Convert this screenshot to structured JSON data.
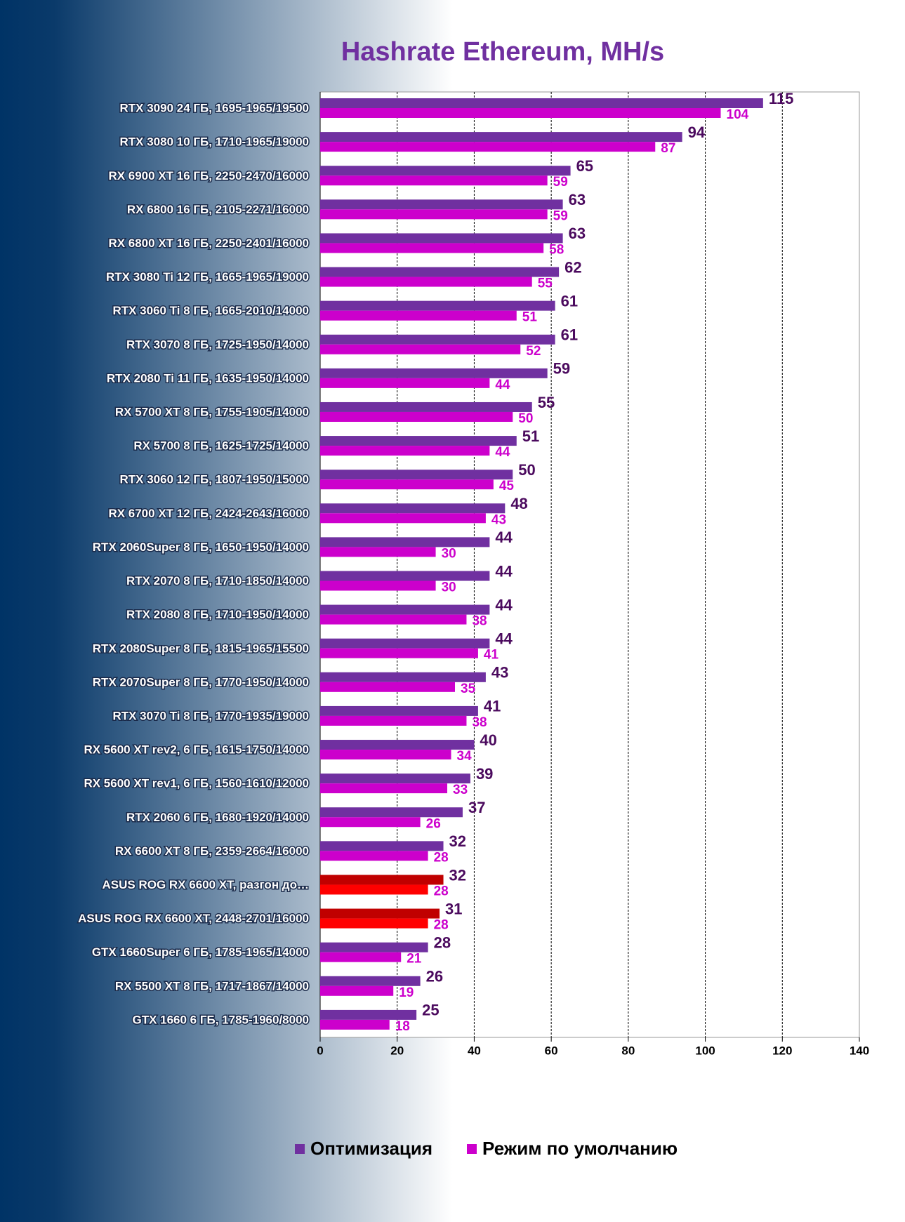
{
  "chart_data": {
    "type": "hbar",
    "title": "Hashrate Ethereum, MH/s",
    "categories": [
      "RTX 3090 24 ГБ, 1695-1965/19500",
      "RTX 3080 10 ГБ, 1710-1965/19000",
      "RX 6900 XT 16 ГБ, 2250-2470/16000",
      "RX 6800 16 ГБ, 2105-2271/16000",
      "RX 6800 XT 16 ГБ, 2250-2401/16000",
      "RTX 3080 Ti 12 ГБ, 1665-1965/19000",
      "RTX 3060 Ti 8 ГБ, 1665-2010/14000",
      "RTX 3070 8 ГБ, 1725-1950/14000",
      "RTX 2080 Ti 11 ГБ, 1635-1950/14000",
      "RX 5700 XT 8 ГБ, 1755-1905/14000",
      "RX 5700 8 ГБ, 1625-1725/14000",
      "RTX 3060 12 ГБ, 1807-1950/15000",
      "RX 6700 XT 12 ГБ, 2424-2643/16000",
      "RTX 2060Super 8 ГБ, 1650-1950/14000",
      "RTX 2070 8 ГБ, 1710-1850/14000",
      "RTX 2080 8 ГБ, 1710-1950/14000",
      "RTX 2080Super 8 ГБ, 1815-1965/15500",
      "RTX 2070Super 8 ГБ, 1770-1950/14000",
      "RTX 3070 Ti 8 ГБ, 1770-1935/19000",
      "RX 5600 XT rev2, 6 ГБ, 1615-1750/14000",
      "RX 5600 XT rev1, 6 ГБ, 1560-1610/12000",
      "RTX 2060 6 ГБ, 1680-1920/14000",
      "RX 6600 XT 8 ГБ, 2359-2664/16000",
      "ASUS ROG RX 6600 XT, разгон до…",
      "ASUS ROG RX 6600 XT, 2448-2701/16000",
      "GTX 1660Super 6 ГБ, 1785-1965/14000",
      "RX 5500 XT 8 ГБ, 1717-1867/14000",
      "GTX 1660 6 ГБ, 1785-1960/8000"
    ],
    "series": [
      {
        "name": "Оптимизация",
        "color": "#7030a0",
        "values": [
          115,
          94,
          65,
          63,
          63,
          62,
          61,
          61,
          59,
          55,
          51,
          50,
          48,
          44,
          44,
          44,
          44,
          43,
          41,
          40,
          39,
          37,
          32,
          32,
          31,
          28,
          26,
          25
        ],
        "colors": [
          "#7030a0",
          "#7030a0",
          "#7030a0",
          "#7030a0",
          "#7030a0",
          "#7030a0",
          "#7030a0",
          "#7030a0",
          "#7030a0",
          "#7030a0",
          "#7030a0",
          "#7030a0",
          "#7030a0",
          "#7030a0",
          "#7030a0",
          "#7030a0",
          "#7030a0",
          "#7030a0",
          "#7030a0",
          "#7030a0",
          "#7030a0",
          "#7030a0",
          "#7030a0",
          "#c00000",
          "#c00000",
          "#7030a0",
          "#7030a0",
          "#7030a0"
        ]
      },
      {
        "name": "Режим по умолчанию",
        "color": "#cc00cc",
        "values": [
          104,
          87,
          59,
          59,
          58,
          55,
          51,
          52,
          44,
          50,
          44,
          45,
          43,
          30,
          30,
          38,
          41,
          35,
          38,
          34,
          33,
          26,
          28,
          28,
          28,
          21,
          19,
          18
        ],
        "colors": [
          "#cc00cc",
          "#cc00cc",
          "#cc00cc",
          "#cc00cc",
          "#cc00cc",
          "#cc00cc",
          "#cc00cc",
          "#cc00cc",
          "#cc00cc",
          "#cc00cc",
          "#cc00cc",
          "#cc00cc",
          "#cc00cc",
          "#cc00cc",
          "#cc00cc",
          "#cc00cc",
          "#cc00cc",
          "#cc00cc",
          "#cc00cc",
          "#cc00cc",
          "#cc00cc",
          "#cc00cc",
          "#cc00cc",
          "#ff0000",
          "#ff0000",
          "#cc00cc",
          "#cc00cc",
          "#cc00cc"
        ]
      }
    ],
    "xlim": [
      0,
      140
    ],
    "xticks": [
      0,
      20,
      40,
      60,
      80,
      100,
      120,
      140
    ],
    "grid": true
  }
}
